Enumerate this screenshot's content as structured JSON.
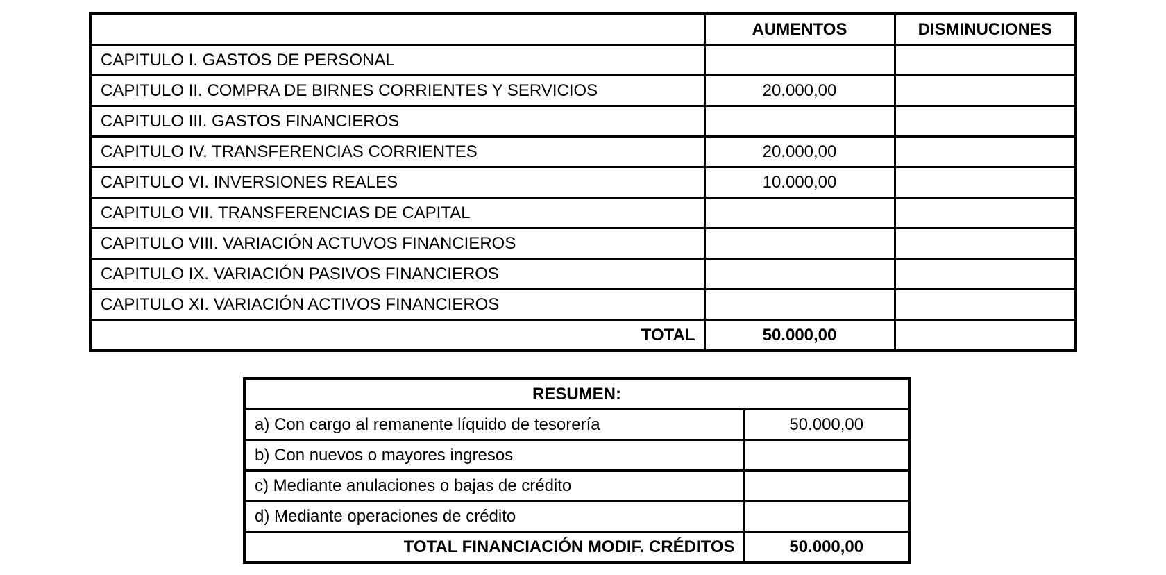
{
  "page": {
    "background_color": "#ffffff",
    "border_color": "#000000"
  },
  "capitulos_table": {
    "columns": {
      "label": "",
      "aumentos": "AUMENTOS",
      "disminuciones": "DISMINUCIONES"
    },
    "rows": [
      {
        "label": "CAPITULO I. GASTOS DE PERSONAL",
        "aumentos": "",
        "disminuciones": ""
      },
      {
        "label": "CAPITULO II. COMPRA DE BIRNES CORRIENTES Y SERVICIOS",
        "aumentos": "20.000,00",
        "disminuciones": ""
      },
      {
        "label": "CAPITULO III. GASTOS FINANCIEROS",
        "aumentos": "",
        "disminuciones": ""
      },
      {
        "label": "CAPITULO IV. TRANSFERENCIAS CORRIENTES",
        "aumentos": "20.000,00",
        "disminuciones": ""
      },
      {
        "label": "CAPITULO VI. INVERSIONES REALES",
        "aumentos": "10.000,00",
        "disminuciones": ""
      },
      {
        "label": "CAPITULO VII. TRANSFERENCIAS DE CAPITAL",
        "aumentos": "",
        "disminuciones": ""
      },
      {
        "label": "CAPITULO VIII. VARIACIÓN ACTUVOS FINANCIEROS",
        "aumentos": "",
        "disminuciones": ""
      },
      {
        "label": "CAPITULO IX. VARIACIÓN PASIVOS FINANCIEROS",
        "aumentos": "",
        "disminuciones": ""
      },
      {
        "label": "CAPITULO XI. VARIACIÓN ACTIVOS FINANCIEROS",
        "aumentos": "",
        "disminuciones": ""
      }
    ],
    "total": {
      "label": "TOTAL",
      "aumentos": "50.000,00",
      "disminuciones": ""
    }
  },
  "resumen_table": {
    "title": "RESUMEN:",
    "rows": [
      {
        "label": "a) Con cargo al remanente líquido de tesorería",
        "value": "50.000,00"
      },
      {
        "label": "b) Con nuevos o mayores ingresos",
        "value": ""
      },
      {
        "label": "c) Mediante anulaciones o bajas de crédito",
        "value": ""
      },
      {
        "label": "d) Mediante operaciones de crédito",
        "value": ""
      }
    ],
    "total": {
      "label": "TOTAL FINANCIACIÓN MODIF. CRÉDITOS",
      "value": "50.000,00"
    }
  }
}
